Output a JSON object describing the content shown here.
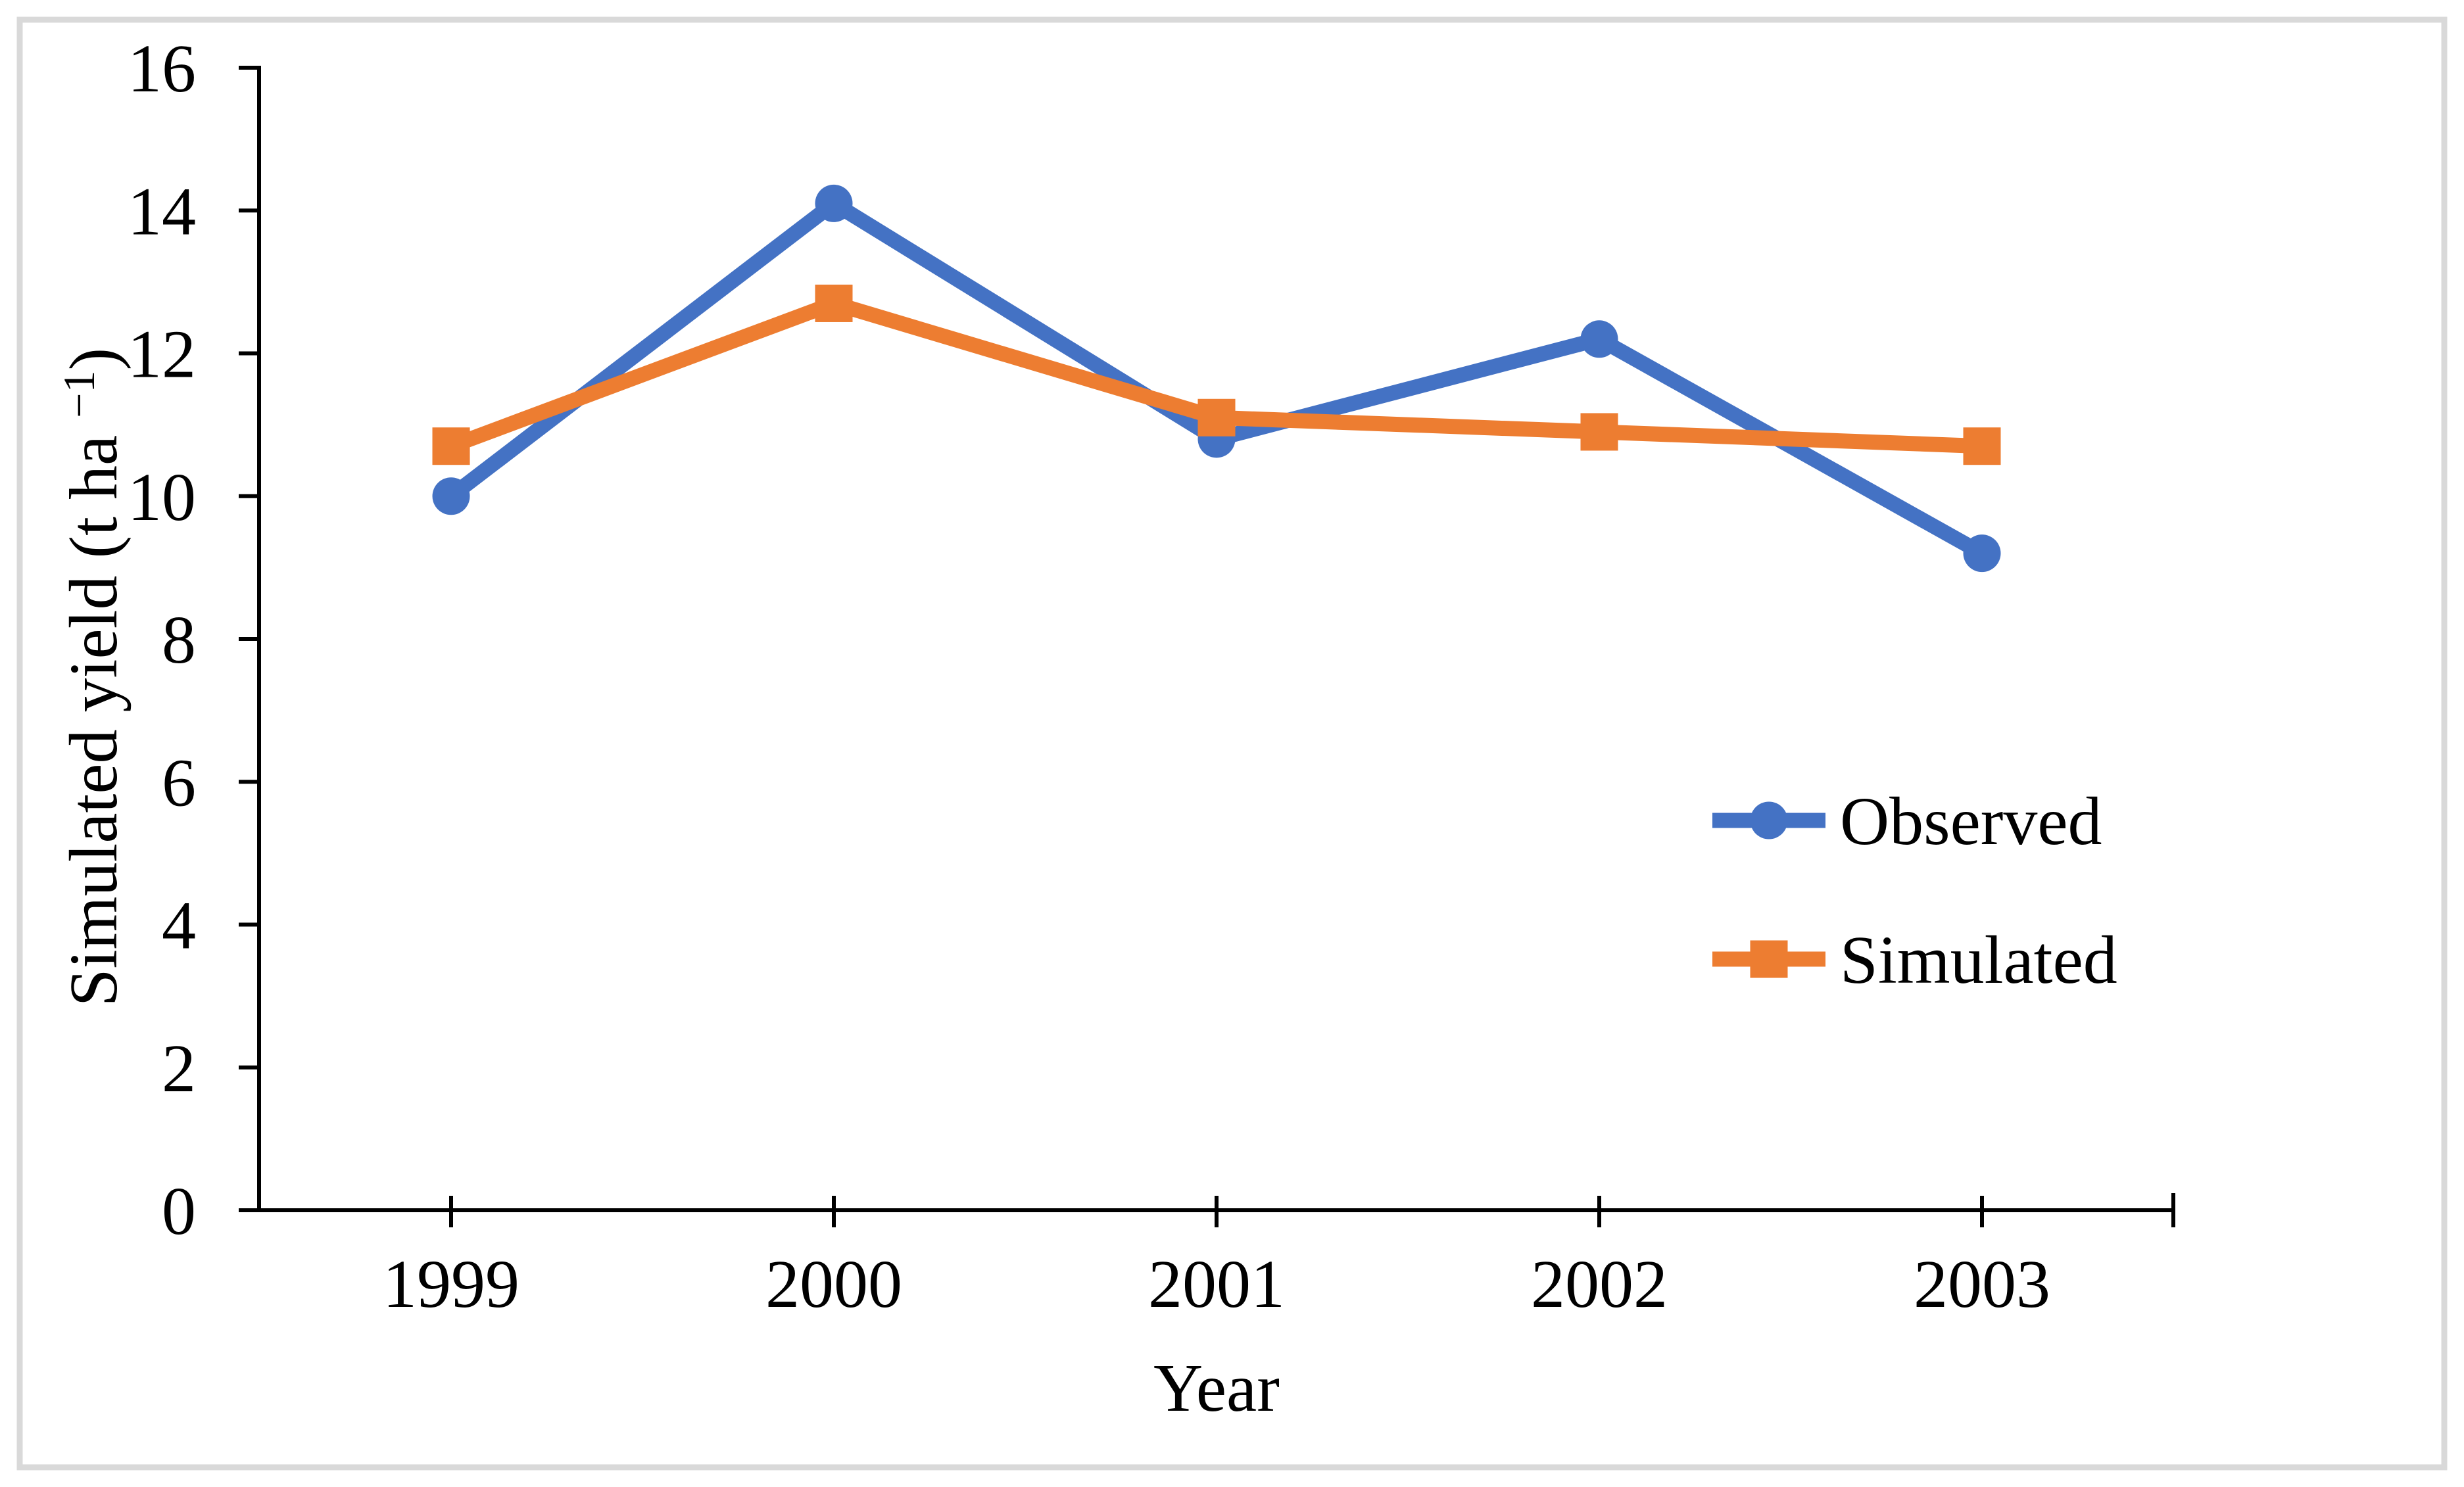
{
  "figure": {
    "background": "#FFFFFF",
    "border_color": "#D9D9D9",
    "axis_color": "#000000",
    "text_color": "#000000"
  },
  "chart_data": {
    "type": "line",
    "title": "",
    "xlabel": "Year",
    "ylabel": "Simulated yield (t ha −1)",
    "ylabel_parts": {
      "prefix": "Simulated yield (t ha ",
      "superscript": "−1",
      "suffix": ")"
    },
    "categories": [
      "1999",
      "2000",
      "2001",
      "2002",
      "2003"
    ],
    "series": [
      {
        "name": "Observed",
        "color": "#4472C4",
        "marker": "circle",
        "values": [
          10.0,
          14.1,
          10.8,
          12.2,
          9.2
        ]
      },
      {
        "name": "Simulated",
        "color": "#ED7D31",
        "marker": "square",
        "values": [
          10.7,
          12.7,
          11.1,
          10.9,
          10.7
        ]
      }
    ],
    "ylim": [
      0,
      16
    ],
    "yticks": [
      0,
      2,
      4,
      6,
      8,
      10,
      12,
      14,
      16
    ],
    "grid": false,
    "legend_position": "right-middle",
    "legend_entries": [
      "Observed",
      "Simulated"
    ]
  }
}
